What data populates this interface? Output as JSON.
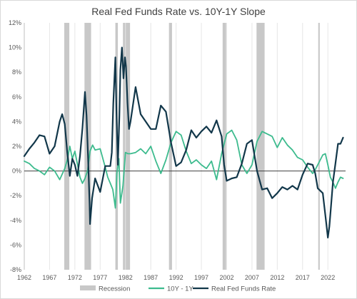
{
  "chart_data": {
    "type": "line",
    "title": "Real Fed Funds Rate vs. 10Y-1Y Slope",
    "xlabel": "",
    "ylabel": "",
    "xlim": [
      1962,
      2025.5
    ],
    "ylim": [
      -8,
      12
    ],
    "y_ticks": [
      -8,
      -6,
      -4,
      -2,
      0,
      2,
      4,
      6,
      8,
      10,
      12
    ],
    "y_tick_labels": [
      "-8%",
      "-6%",
      "-4%",
      "-2%",
      "0%",
      "2%",
      "4%",
      "6%",
      "8%",
      "10%",
      "12%"
    ],
    "x_ticks": [
      1962,
      1967,
      1972,
      1977,
      1982,
      1987,
      1992,
      1997,
      2002,
      2007,
      2012,
      2017,
      2022
    ],
    "x_tick_labels": [
      "1962",
      "1967",
      "1972",
      "1977",
      "1982",
      "1987",
      "1992",
      "1997",
      "2002",
      "2007",
      "2012",
      "2017",
      "2022"
    ],
    "grid": "vertical",
    "legend_position": "bottom",
    "recessions": [
      {
        "start": 1969.9,
        "end": 1970.9
      },
      {
        "start": 1973.9,
        "end": 1975.2
      },
      {
        "start": 1980.0,
        "end": 1980.5
      },
      {
        "start": 1981.5,
        "end": 1982.9
      },
      {
        "start": 1990.6,
        "end": 1991.2
      },
      {
        "start": 2001.2,
        "end": 2001.9
      },
      {
        "start": 2007.9,
        "end": 2009.5
      },
      {
        "start": 2020.1,
        "end": 2020.4
      }
    ],
    "legend": [
      {
        "label": "Recession",
        "color": "#c8c8c8",
        "kind": "box"
      },
      {
        "label": "10Y - 1Y",
        "color": "#3dbb8e",
        "kind": "line"
      },
      {
        "label": "Real Fed Funds Rate",
        "color": "#12374a",
        "kind": "line"
      }
    ],
    "series": [
      {
        "name": "10Y - 1Y",
        "color": "#3dbb8e",
        "x": [
          1962,
          1963,
          1964,
          1965,
          1966,
          1967,
          1968,
          1969,
          1970,
          1970.5,
          1971,
          1971.5,
          1972,
          1973,
          1973.5,
          1974,
          1974.5,
          1975,
          1975.5,
          1976,
          1977,
          1978,
          1978.5,
          1979,
          1979.5,
          1980,
          1980.3,
          1980.7,
          1981,
          1981.5,
          1982,
          1982.5,
          1983,
          1984,
          1985,
          1986,
          1987,
          1988,
          1989,
          1990,
          1991,
          1992,
          1993,
          1994,
          1995,
          1996,
          1997,
          1998,
          1999,
          2000,
          2001,
          2002,
          2003,
          2004,
          2005,
          2006,
          2007,
          2008,
          2009,
          2010,
          2011,
          2012,
          2013,
          2014,
          2015,
          2016,
          2017,
          2018,
          2019,
          2019.5,
          2020,
          2020.5,
          2021,
          2021.5,
          2022,
          2022.5,
          2023,
          2023.5,
          2024,
          2024.5,
          2025
        ],
        "y": [
          0.8,
          0.6,
          0.2,
          0.0,
          -0.3,
          0.3,
          0.0,
          -0.7,
          0.2,
          0.9,
          2.0,
          1.0,
          1.6,
          -0.5,
          -1.0,
          -0.6,
          0.0,
          1.6,
          2.1,
          1.7,
          1.8,
          0.3,
          -0.5,
          -1.0,
          -1.5,
          -3.0,
          -0.2,
          1.0,
          -2.6,
          -1.2,
          1.5,
          1.4,
          1.4,
          1.5,
          1.8,
          1.4,
          2.0,
          0.8,
          -0.2,
          0.9,
          2.3,
          3.2,
          2.9,
          1.6,
          0.6,
          0.9,
          0.5,
          0.2,
          0.8,
          -0.7,
          1.4,
          3.0,
          3.3,
          2.5,
          0.5,
          -0.2,
          0.5,
          2.4,
          3.2,
          3.0,
          2.8,
          1.9,
          2.7,
          2.1,
          1.7,
          1.1,
          0.9,
          0.3,
          -0.2,
          0.1,
          0.5,
          0.9,
          1.3,
          1.4,
          0.5,
          -0.5,
          -0.9,
          -1.4,
          -0.9,
          -0.5,
          -0.6
        ]
      },
      {
        "name": "Real Fed Funds Rate",
        "color": "#12374a",
        "x": [
          1962,
          1963,
          1964,
          1965,
          1966,
          1967,
          1968,
          1969,
          1969.5,
          1970,
          1970.5,
          1971,
          1971.5,
          1972,
          1972.5,
          1973,
          1973.5,
          1974,
          1974.3,
          1974.6,
          1974.9,
          1975,
          1975.4,
          1976,
          1977,
          1978,
          1979,
          1979.3,
          1979.6,
          1980,
          1980.2,
          1980.5,
          1980.8,
          1981,
          1981.3,
          1981.6,
          1981.9,
          1982.1,
          1982.4,
          1982.7,
          1983,
          1984,
          1985,
          1986,
          1987,
          1988,
          1989,
          1990,
          1991,
          1992,
          1993,
          1994,
          1995,
          1996,
          1997,
          1998,
          1999,
          2000,
          2001,
          2001.5,
          2002,
          2003,
          2004,
          2005,
          2006,
          2007,
          2008,
          2009,
          2010,
          2011,
          2012,
          2013,
          2014,
          2015,
          2016,
          2017,
          2018,
          2019,
          2019.5,
          2020,
          2020.5,
          2021,
          2021.5,
          2022,
          2022.3,
          2022.6,
          2023,
          2023.5,
          2024,
          2024.5,
          2025
        ],
        "y": [
          1.2,
          1.8,
          2.3,
          2.9,
          2.8,
          1.4,
          2.0,
          4.0,
          4.6,
          3.8,
          1.5,
          -0.4,
          1.0,
          0.5,
          -0.4,
          1.2,
          3.5,
          6.4,
          4.5,
          1.2,
          -2.5,
          -4.3,
          -2.2,
          -0.6,
          -1.7,
          0.4,
          0.4,
          1.5,
          5.5,
          9.2,
          5.0,
          0.5,
          4.5,
          8.2,
          10.0,
          7.5,
          9.2,
          8.5,
          5.5,
          3.4,
          4.0,
          6.8,
          4.6,
          4.0,
          3.4,
          3.4,
          5.3,
          4.8,
          2.3,
          0.4,
          0.7,
          1.7,
          3.3,
          2.7,
          3.2,
          3.6,
          3.1,
          4.1,
          2.8,
          0.5,
          -0.8,
          -0.6,
          -0.5,
          0.6,
          2.2,
          2.5,
          0.0,
          -1.5,
          -1.4,
          -2.2,
          -1.8,
          -1.3,
          -1.5,
          -1.2,
          -1.5,
          -0.3,
          0.6,
          0.5,
          -0.2,
          -1.4,
          -1.6,
          -1.8,
          -3.6,
          -5.4,
          -4.5,
          -3.0,
          -0.9,
          0.6,
          2.2,
          2.2,
          2.7
        ]
      }
    ]
  }
}
